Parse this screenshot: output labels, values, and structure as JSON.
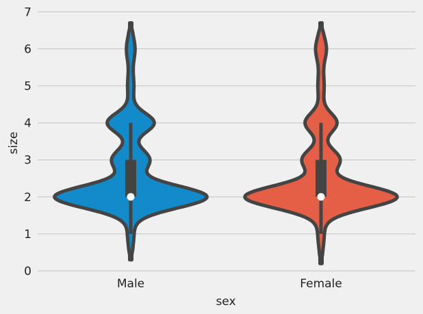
{
  "chart_data": {
    "type": "violin",
    "title": "",
    "xlabel": "sex",
    "ylabel": "size",
    "ylim": [
      0,
      7
    ],
    "yticks": [
      0,
      1,
      2,
      3,
      4,
      5,
      6,
      7
    ],
    "grid": "horizontal",
    "colors": {
      "background": "#f0f0f0",
      "grid": "#cbcbcb",
      "outline": "#444444",
      "median": "#ffffff"
    },
    "categories": [
      {
        "label": "Male",
        "color": "#138bca",
        "kde_range": [
          0.3,
          6.7
        ],
        "box": {
          "whisker_low": 1,
          "q1": 2,
          "median": 2,
          "q3": 3,
          "whisker_high": 4
        }
      },
      {
        "label": "Female",
        "color": "#e55e46",
        "kde_range": [
          0.2,
          6.7
        ],
        "box": {
          "whisker_low": 1,
          "q1": 2,
          "median": 2,
          "q3": 3,
          "whisker_high": 4
        }
      }
    ]
  }
}
